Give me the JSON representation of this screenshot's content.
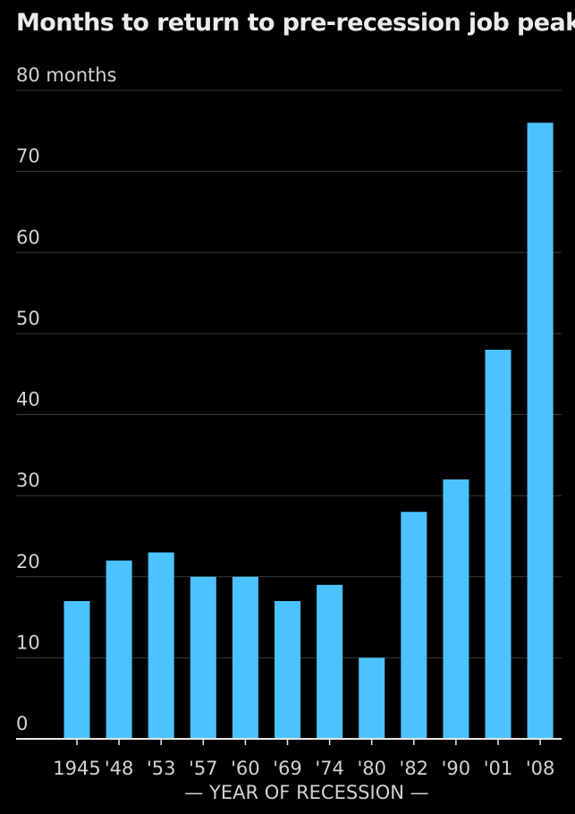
{
  "chart_data": {
    "type": "bar",
    "title": "Months to return to pre-recession job peak",
    "xlabel": "— YEAR OF RECESSION —",
    "ylabel": "",
    "y_unit_label": "months",
    "ylim": [
      0,
      80
    ],
    "yticks": [
      0,
      10,
      20,
      30,
      40,
      50,
      60,
      70,
      80
    ],
    "grid": true,
    "categories": [
      "1945",
      "'48",
      "'53",
      "'57",
      "'60",
      "'69",
      "'74",
      "'80",
      "'82",
      "'90",
      "'01",
      "'08"
    ],
    "values": [
      17,
      22,
      23,
      20,
      20,
      17,
      19,
      10,
      28,
      32,
      48,
      76
    ],
    "colors": {
      "background": "#000000",
      "bar": "#4cc3ff",
      "grid": "#3a3a3a",
      "axis": "#e6e6e6",
      "text": "#d2d2d2"
    }
  }
}
